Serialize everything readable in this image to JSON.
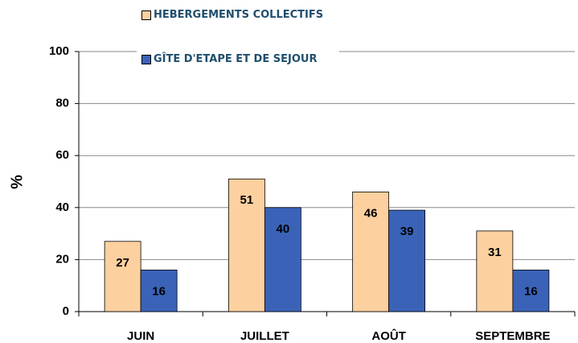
{
  "chart_data": {
    "type": "bar",
    "y_label": "%",
    "categories": [
      "JUIN",
      "JUILLET",
      "AOÛT",
      "SEPTEMBRE"
    ],
    "series": [
      {
        "name": "HEBERGEMENTS COLLECTIFS",
        "color": "#fdd09f",
        "values": [
          27,
          51,
          46,
          31
        ]
      },
      {
        "name": "GÎTE D'ETAPE ET DE SEJOUR",
        "color": "#3a63b8",
        "values": [
          16,
          40,
          39,
          16
        ]
      }
    ],
    "ylim": [
      0,
      100
    ],
    "yticks": [
      0,
      20,
      40,
      60,
      80,
      100
    ],
    "grid": true,
    "legend": "top"
  }
}
